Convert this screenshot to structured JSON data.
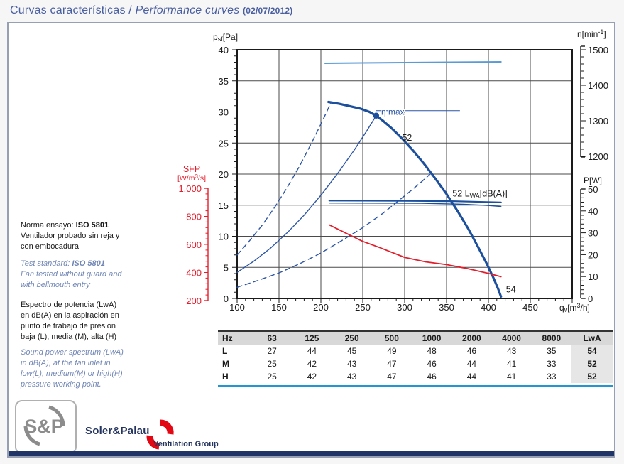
{
  "title": {
    "main": "Curvas características / ",
    "italic": "Performance curves",
    "date": "(02/07/2012)"
  },
  "notes": [
    {
      "prefix": "Norma ensayo: ",
      "standard": "ISO 5801",
      "lines": [
        "Ventilador probado sin reja y",
        "con embocadura"
      ]
    },
    {
      "prefix": "Test standard: ",
      "standard": "ISO 5801",
      "lines": [
        "Fan tested without guard and",
        "with bellmouth entry"
      ]
    },
    {
      "prefix": "",
      "standard": "",
      "lines": [
        "Espectro de potencia (LwA)",
        "en dB(A) en la aspiración en",
        "punto de trabajo de presión",
        "baja (L), media (M), alta (H)"
      ]
    },
    {
      "prefix": "",
      "standard": "",
      "lines": [
        "Sound power spectrum (LwA)",
        "in dB(A), at the fan inlet in",
        "low(L), medium(M) or high(H)",
        "pressure working point."
      ]
    }
  ],
  "colors": {
    "curve_navy": "#1c4f9c",
    "system_blue": "#2d55a5",
    "speed_blue": "#5b9bd5",
    "sfp_red": "#e31e2c",
    "grid": "#4a4a4a",
    "cyan_rule": "#2196d3",
    "navy_bar": "#203468"
  },
  "chart_data": {
    "type": "line",
    "title": "",
    "x_axis": {
      "label": "qv[m3/h]",
      "range": [
        100,
        500
      ],
      "ticks": [
        100,
        150,
        200,
        250,
        300,
        350,
        400,
        450
      ],
      "minor_step": 10
    },
    "y_axes": {
      "pressure": {
        "label": "psf[Pa]",
        "range": [
          0,
          40
        ],
        "ticks": [
          40,
          35,
          30,
          25,
          20,
          15,
          10,
          5,
          0
        ],
        "minor_step": 1,
        "side": "left"
      },
      "speed": {
        "label": "n[min-1]",
        "range": [
          1200,
          1500
        ],
        "ticks": [
          1500,
          1400,
          1300,
          1200
        ],
        "minor_step": 20,
        "side": "right"
      },
      "power": {
        "label": "P[W]",
        "range": [
          0,
          50
        ],
        "ticks": [
          50,
          40,
          30,
          20,
          10,
          0
        ],
        "minor_step": 2,
        "side": "right"
      },
      "sfp": {
        "label": "SFP [W/m3/s]",
        "range": [
          200,
          1000
        ],
        "ticks": [
          1000,
          800,
          600,
          400,
          200
        ],
        "tick_labels": [
          "1.000",
          "800",
          "600",
          "400",
          "200"
        ],
        "minor_step": 40,
        "side": "left"
      }
    },
    "grid": true,
    "series": [
      {
        "name": "pressure-curve",
        "axis": "pressure",
        "style": "solid",
        "width": 3.2,
        "color": "#1c4f9c",
        "points": [
          [
            209,
            31.6
          ],
          [
            222,
            31.3
          ],
          [
            235,
            30.9
          ],
          [
            248,
            30.5
          ],
          [
            258,
            30.0
          ],
          [
            266,
            29.4
          ],
          [
            274,
            28.6
          ],
          [
            285,
            27.3
          ],
          [
            297,
            25.7
          ],
          [
            310,
            23.8
          ],
          [
            323,
            21.7
          ],
          [
            336,
            19.4
          ],
          [
            350,
            16.8
          ],
          [
            363,
            14.1
          ],
          [
            376,
            11.2
          ],
          [
            388,
            8.2
          ],
          [
            398,
            5.6
          ],
          [
            406,
            3.3
          ],
          [
            412,
            1.4
          ],
          [
            415,
            0.3
          ]
        ]
      },
      {
        "name": "system-curve-eta",
        "axis": "pressure",
        "style": "solid",
        "width": 1.4,
        "color": "#2d55a5",
        "points": [
          [
            100,
            4.2
          ],
          [
            120,
            6.0
          ],
          [
            140,
            8.1
          ],
          [
            160,
            10.6
          ],
          [
            180,
            13.4
          ],
          [
            200,
            16.6
          ],
          [
            220,
            20.1
          ],
          [
            240,
            23.9
          ],
          [
            255,
            27.0
          ],
          [
            266,
            29.4
          ]
        ]
      },
      {
        "name": "system-curve-high",
        "axis": "pressure",
        "style": "dashed",
        "width": 1.4,
        "color": "#2d55a5",
        "points": [
          [
            100,
            7.0
          ],
          [
            115,
            9.3
          ],
          [
            130,
            11.8
          ],
          [
            145,
            14.7
          ],
          [
            160,
            17.9
          ],
          [
            175,
            21.4
          ],
          [
            190,
            25.3
          ],
          [
            202,
            28.6
          ],
          [
            212,
            31.5
          ]
        ]
      },
      {
        "name": "system-curve-low",
        "axis": "pressure",
        "style": "dashed",
        "width": 1.4,
        "color": "#2d55a5",
        "points": [
          [
            100,
            1.8
          ],
          [
            125,
            2.9
          ],
          [
            150,
            4.1
          ],
          [
            175,
            5.6
          ],
          [
            200,
            7.3
          ],
          [
            225,
            9.3
          ],
          [
            250,
            11.4
          ],
          [
            275,
            13.8
          ],
          [
            300,
            16.5
          ],
          [
            318,
            18.5
          ],
          [
            333,
            20.3
          ]
        ]
      },
      {
        "name": "speed-curve",
        "axis": "speed",
        "style": "solid",
        "width": 2,
        "color": "#5b9bd5",
        "points": [
          [
            205,
            1462
          ],
          [
            300,
            1464
          ],
          [
            415,
            1466
          ]
        ]
      },
      {
        "name": "power-curve",
        "axis": "power",
        "style": "solid",
        "width": 2.2,
        "color": "#1c4f9c",
        "points": [
          [
            210,
            44.7
          ],
          [
            300,
            44.6
          ],
          [
            360,
            44.4
          ],
          [
            415,
            43.9
          ]
        ]
      },
      {
        "name": "lwa-curve",
        "axis": "pressure",
        "style": "solid",
        "width": 1.4,
        "color": "#1c4f9c",
        "points": [
          [
            210,
            15.35
          ],
          [
            320,
            15.3
          ],
          [
            370,
            15.15
          ],
          [
            400,
            14.95
          ],
          [
            415,
            14.8
          ]
        ]
      },
      {
        "name": "sfp-curve",
        "axis": "sfp",
        "style": "solid",
        "width": 1.8,
        "color": "#e31e2c",
        "points": [
          [
            210,
            740
          ],
          [
            230,
            680
          ],
          [
            250,
            622
          ],
          [
            270,
            578
          ],
          [
            300,
            508
          ],
          [
            325,
            476
          ],
          [
            350,
            456
          ],
          [
            375,
            428
          ],
          [
            400,
            394
          ],
          [
            415,
            370
          ]
        ]
      }
    ],
    "annotations": [
      {
        "name": "eta-max-label",
        "text": "η max",
        "x": 272,
        "y": 30.0,
        "color": "#2d55a5",
        "marker": [
          266,
          29.4
        ],
        "leader_to_x": 366
      },
      {
        "name": "lwa-52-point",
        "text": "52",
        "x": 297,
        "y": 25.4,
        "color": "#1a1a1a"
      },
      {
        "name": "lwa-curve-label",
        "pre": "52 L",
        "sub": "WA",
        "post": "[dB(A)]",
        "x": 357,
        "y": 16.4,
        "color": "#1a1a1a"
      },
      {
        "name": "lwa-54-point",
        "text": "54",
        "x": 421,
        "y": 1.0,
        "color": "#1a1a1a"
      }
    ],
    "axis_titles": {
      "pressure": {
        "base": "p",
        "sub": "sf",
        "rest": "[Pa]"
      },
      "speed": {
        "base": "n[min",
        "sup": "-1",
        "rest": "]"
      },
      "power": {
        "base": "P[W]"
      },
      "flow": {
        "base": "q",
        "sub": "v",
        "rest": "[m",
        "sup": "3",
        "rest2": "/h]"
      },
      "sfp": {
        "line1": "SFP",
        "l2a": "[W/m",
        "sup": "3",
        "l2b": "/s]"
      }
    }
  },
  "table": {
    "columns": [
      "Hz",
      "63",
      "125",
      "250",
      "500",
      "1000",
      "2000",
      "4000",
      "8000",
      "LwA"
    ],
    "rows": [
      {
        "label": "L",
        "values": [
          "27",
          "44",
          "45",
          "49",
          "48",
          "46",
          "43",
          "35"
        ],
        "lwa": "54"
      },
      {
        "label": "M",
        "values": [
          "25",
          "42",
          "43",
          "47",
          "46",
          "44",
          "41",
          "33"
        ],
        "lwa": "52"
      },
      {
        "label": "H",
        "values": [
          "25",
          "42",
          "43",
          "47",
          "46",
          "44",
          "41",
          "33"
        ],
        "lwa": "52"
      }
    ]
  },
  "logo": {
    "sp": "S&P",
    "brand": "Soler&Palau",
    "group": "Ventilation Group"
  }
}
